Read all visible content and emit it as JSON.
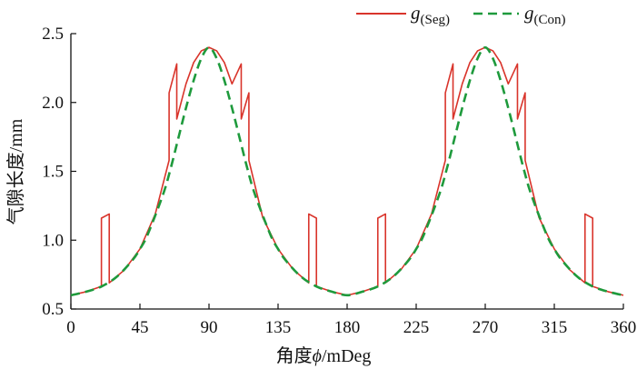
{
  "chart_data": {
    "type": "line",
    "xlabel_prefix": "角度",
    "xlabel_symbol": "ϕ",
    "xlabel_unit": "/mDeg",
    "ylabel": "气隙长度/mm",
    "xlim": [
      0,
      360
    ],
    "ylim": [
      0.5,
      2.5
    ],
    "xticks": [
      0,
      45,
      90,
      135,
      180,
      225,
      270,
      315,
      360
    ],
    "xtick_labels": [
      "0",
      "45",
      "90",
      "135",
      "180",
      "225",
      "270",
      "315",
      "360"
    ],
    "yticks": [
      0.5,
      1.0,
      1.5,
      2.0,
      2.5
    ],
    "ytick_labels": [
      "0.5",
      "1.0",
      "1.5",
      "2.0",
      "2.5"
    ],
    "grid": false,
    "legend_position": "top-right",
    "series": [
      {
        "name": "g",
        "name_sub": "(Seg)",
        "color": "#d9342b",
        "style": "solid",
        "x": [
          0,
          10,
          19.9,
          19.9,
          25,
          25,
          35,
          45,
          55,
          64,
          64,
          69,
          69,
          75,
          80,
          85,
          90,
          95,
          100,
          105,
          111,
          111,
          116,
          116,
          125,
          135,
          145,
          155,
          155,
          160,
          160,
          170,
          180,
          190,
          200,
          200,
          205,
          205,
          215,
          225,
          235,
          244,
          244,
          249,
          249,
          255,
          260,
          265,
          270,
          275,
          280,
          285,
          291,
          291,
          296,
          296,
          305,
          315,
          325,
          335,
          335,
          340,
          340,
          350,
          360
        ],
        "y": [
          0.6,
          0.626,
          0.664,
          1.16,
          1.19,
          0.69,
          0.785,
          0.936,
          1.19,
          1.58,
          2.07,
          2.28,
          1.88,
          2.135,
          2.29,
          2.375,
          2.4,
          2.375,
          2.29,
          2.135,
          2.28,
          1.88,
          2.07,
          1.58,
          1.165,
          0.936,
          0.785,
          0.69,
          1.19,
          1.16,
          0.664,
          0.626,
          0.6,
          0.626,
          0.664,
          1.16,
          1.19,
          0.69,
          0.785,
          0.936,
          1.19,
          1.58,
          2.07,
          2.28,
          1.88,
          2.135,
          2.29,
          2.375,
          2.4,
          2.375,
          2.29,
          2.135,
          2.28,
          1.88,
          2.07,
          1.58,
          1.165,
          0.936,
          0.785,
          0.69,
          1.19,
          1.16,
          0.664,
          0.626,
          0.6
        ]
      },
      {
        "name": "g",
        "name_sub": "(Con)",
        "color": "#1e9a3c",
        "style": "dashed",
        "x": [
          0,
          10,
          20,
          30,
          40,
          45,
          50,
          60,
          65,
          70,
          75,
          80,
          85,
          90,
          95,
          100,
          105,
          110,
          115,
          120,
          130,
          135,
          140,
          150,
          160,
          170,
          180,
          190,
          200,
          210,
          220,
          225,
          230,
          240,
          245,
          250,
          255,
          260,
          265,
          270,
          275,
          280,
          285,
          290,
          295,
          300,
          310,
          315,
          320,
          330,
          340,
          350,
          360
        ],
        "y": [
          0.6,
          0.626,
          0.664,
          0.735,
          0.853,
          0.936,
          1.04,
          1.33,
          1.52,
          1.74,
          1.96,
          2.16,
          2.32,
          2.4,
          2.32,
          2.16,
          1.96,
          1.74,
          1.52,
          1.33,
          1.04,
          0.936,
          0.853,
          0.735,
          0.664,
          0.626,
          0.6,
          0.626,
          0.664,
          0.735,
          0.853,
          0.936,
          1.04,
          1.33,
          1.52,
          1.74,
          1.96,
          2.16,
          2.32,
          2.4,
          2.32,
          2.16,
          1.96,
          1.74,
          1.52,
          1.33,
          1.04,
          0.936,
          0.853,
          0.735,
          0.664,
          0.626,
          0.6
        ]
      }
    ]
  }
}
